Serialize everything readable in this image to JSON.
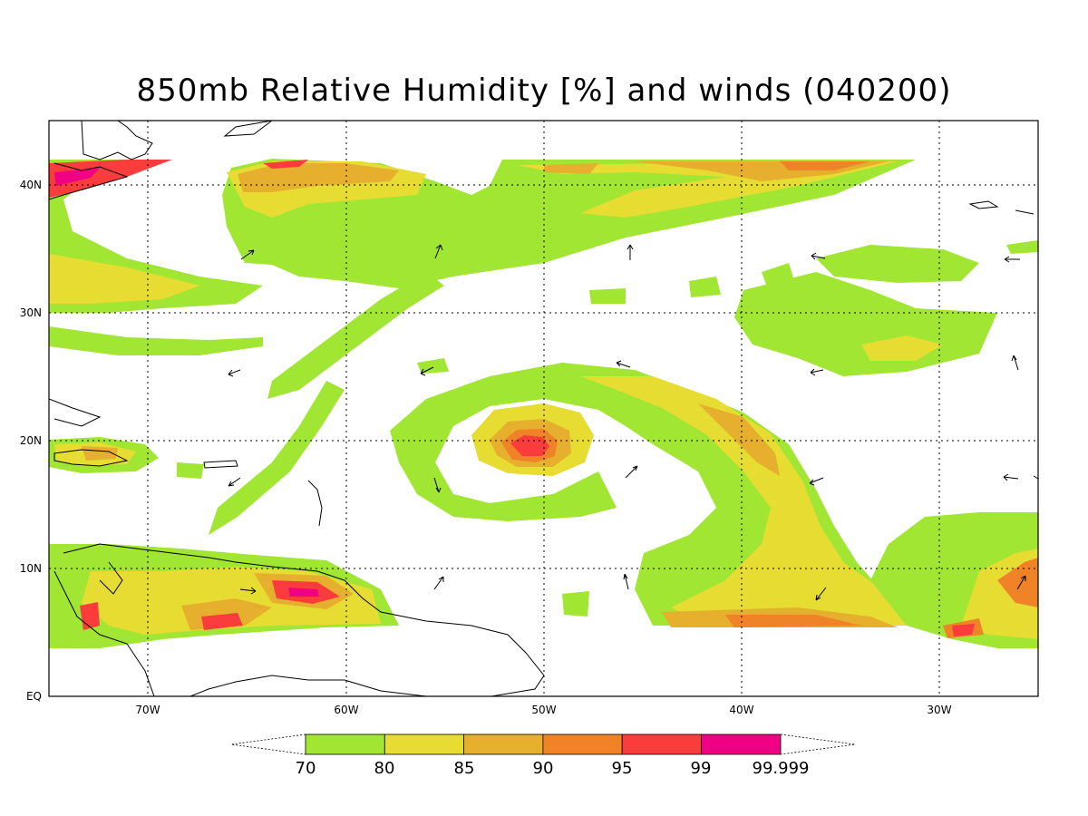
{
  "title": "850mb Relative Humidity [%] and winds (040200)",
  "map": {
    "variable": "850mb Relative Humidity",
    "units": "%",
    "time_code": "040200",
    "lon_range": [
      -75,
      -25
    ],
    "lat_range": [
      0,
      45
    ],
    "grid": true,
    "lon_labels": [
      {
        "lon": -70,
        "text": "70W"
      },
      {
        "lon": -60,
        "text": "60W"
      },
      {
        "lon": -50,
        "text": "50W"
      },
      {
        "lon": -40,
        "text": "40W"
      },
      {
        "lon": -30,
        "text": "30W"
      }
    ],
    "lat_labels": [
      {
        "lat": 40,
        "text": "40N"
      },
      {
        "lat": 30,
        "text": "30N"
      },
      {
        "lat": 20,
        "text": "20N"
      },
      {
        "lat": 10,
        "text": "10N"
      },
      {
        "lat": 0,
        "text": "EQ"
      }
    ],
    "hurricane_center": {
      "lon": -50.5,
      "lat": 19.8
    }
  },
  "colorbar": {
    "levels": [
      "70",
      "80",
      "85",
      "90",
      "95",
      "99",
      "99.999"
    ],
    "colors": [
      "#a0e632",
      "#e6dc32",
      "#e6af2d",
      "#f08228",
      "#fa3c3c",
      "#f00082"
    ]
  },
  "colors": {
    "rh70": "#a0e632",
    "rh80": "#e6dc32",
    "rh85": "#e6af2d",
    "rh90": "#f08228",
    "rh95": "#fa3c3c",
    "rh99": "#f00082"
  }
}
